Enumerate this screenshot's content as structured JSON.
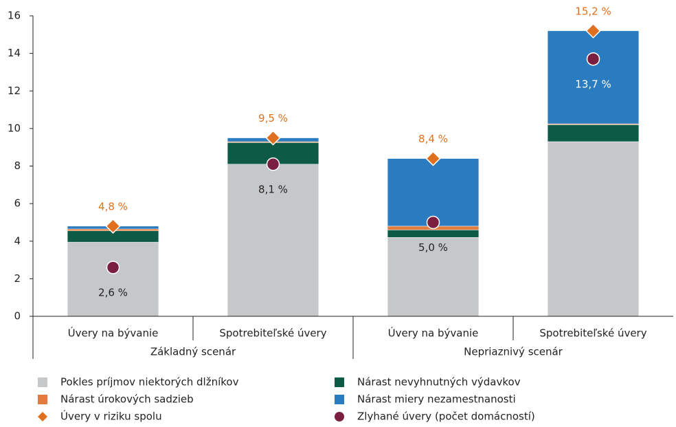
{
  "chart_data": {
    "type": "bar",
    "stacked": true,
    "categories": [
      "Úvery na bývanie",
      "Spotrebiteľské úvery",
      "Úvery na bývanie",
      "Spotrebiteľské úvery"
    ],
    "groups": [
      "Základný scenár",
      "Nepriaznivý scenár"
    ],
    "ylim": [
      0,
      16
    ],
    "yticks": [
      0,
      2,
      4,
      6,
      8,
      10,
      12,
      14,
      16
    ],
    "grid": false,
    "legend_columns": 2,
    "series": [
      {
        "name": "Pokles príjmov niektorých dlžníkov",
        "type": "bar",
        "color": "#c5c7c9",
        "values": [
          3.95,
          8.1,
          4.2,
          9.3
        ]
      },
      {
        "name": "Nárast nevyhnutných výdavkov",
        "type": "bar",
        "color": "#0d5a47",
        "values": [
          0.6,
          1.15,
          0.4,
          0.9
        ]
      },
      {
        "name": "Nárast úrokových sadzieb",
        "type": "bar",
        "color": "#e07c3e",
        "values": [
          0.1,
          0.05,
          0.2,
          0.05
        ]
      },
      {
        "name": "Nárast miery nezamestnanosti",
        "type": "bar",
        "color": "#2a7bbf",
        "values": [
          0.15,
          0.2,
          3.6,
          4.95
        ]
      },
      {
        "name": "Úvery v riziku spolu",
        "type": "diamond",
        "color": "#e0701f",
        "label_color": "#e0701f",
        "label_position": "above",
        "values": [
          4.8,
          9.5,
          8.4,
          15.2
        ],
        "value_labels": [
          "4,8 %",
          "9,5 %",
          "8,4 %",
          "15,2 %"
        ]
      },
      {
        "name": "Zlyhané úvery (počet domácností)",
        "type": "dot",
        "color": "#7a1f3f",
        "label_position": "below",
        "label_colors": [
          "#222222",
          "#222222",
          "#222222",
          "#ffffff"
        ],
        "values": [
          2.6,
          8.1,
          5.0,
          13.7
        ],
        "value_labels": [
          "2,6 %",
          "8,1 %",
          "5,0 %",
          "13,7 %"
        ]
      }
    ]
  }
}
